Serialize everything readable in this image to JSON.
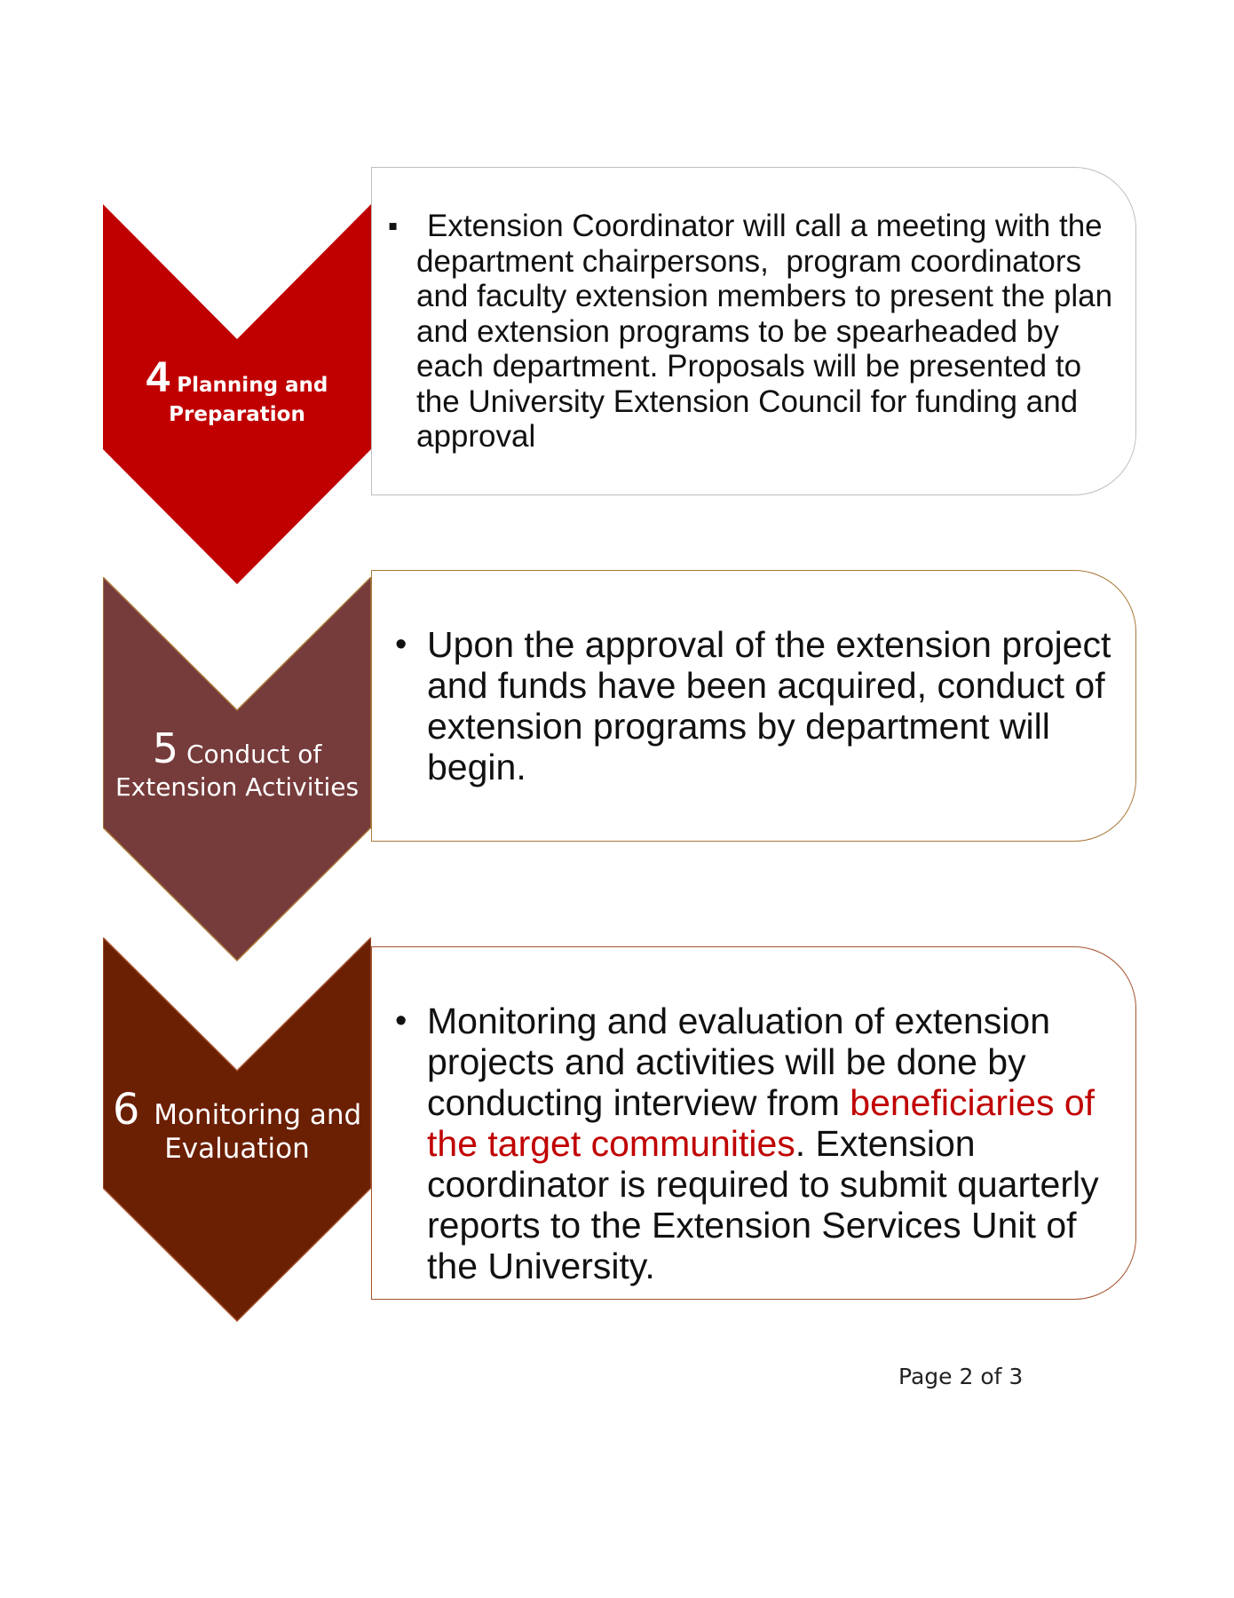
{
  "colors": {
    "step4": "#c00000",
    "step5": "#763b3b",
    "step6": "#6b1f03",
    "step4_border": "#bfbfbf",
    "step5_border": "#a9793a",
    "step6_border": "#a5522c",
    "highlight": "#c00000"
  },
  "steps": [
    {
      "number": "4",
      "label_line1": "Planning and",
      "label_line2": "Preparation",
      "bullet_icon": "square-bullet-icon",
      "bullet_glyph": "▪",
      "text": "Extension Coordinator will call a meeting with the   department chairpersons,  program coordinators and faculty extension members to present the plan and extension programs to be spearheaded by each department. Proposals will be presented to the University Extension Council for funding and approval"
    },
    {
      "number": "5",
      "label_line1": "Conduct of",
      "label_line2": "Extension Activities",
      "bullet_icon": "round-bullet-icon",
      "bullet_glyph": "•",
      "text": "Upon the approval of the extension project and funds have been acquired, conduct of extension programs by department will begin."
    },
    {
      "number": "6",
      "label_line1": "Monitoring and",
      "label_line2": "Evaluation",
      "bullet_icon": "round-bullet-icon",
      "bullet_glyph": "•",
      "text_before": "Monitoring and evaluation of extension projects and activities will be done by conducting interview from ",
      "text_highlight": "beneficiaries of the target communities",
      "text_after": ". Extension coordinator is required to submit quarterly reports to the Extension Services Unit of the University."
    }
  ],
  "footer": {
    "page_number": "Page 2 of 3"
  }
}
